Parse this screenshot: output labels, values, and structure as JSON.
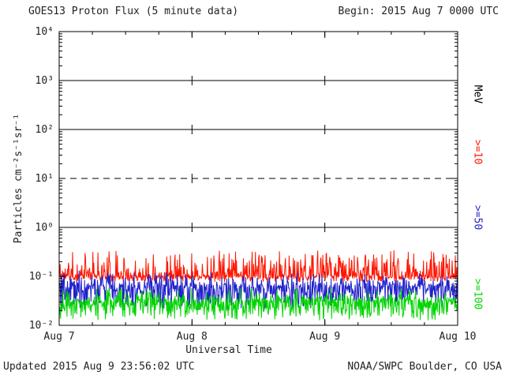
{
  "header": {
    "title": "GOES13 Proton Flux (5 minute data)",
    "begin": "Begin: 2015 Aug 7 0000 UTC"
  },
  "footer": {
    "updated": "Updated 2015 Aug  9 23:56:02 UTC",
    "credit": "NOAA/SWPC Boulder, CO USA"
  },
  "chart_data": {
    "type": "line",
    "title": "GOES13 Proton Flux (5 minute data)",
    "xlabel": "Universal Time",
    "ylabel": "Particles cm⁻²s⁻¹sr⁻¹",
    "x_ticks": [
      "Aug 7",
      "Aug 8",
      "Aug 9",
      "Aug 10"
    ],
    "x_range_days": [
      0,
      3
    ],
    "y_scale": "log",
    "y_range": [
      0.01,
      10000
    ],
    "y_tick_exponents": [
      -2,
      -1,
      0,
      1,
      2,
      3,
      4
    ],
    "y_tick_labels": [
      "10⁻²",
      "10⁻¹",
      "10⁰",
      "10¹",
      "10²",
      "10³",
      "10⁴"
    ],
    "grid": {
      "solid_h_exponents": [
        0,
        2,
        3
      ],
      "dashed_h_exponents": [
        1
      ],
      "dotted_v_days": [
        1,
        2
      ]
    },
    "legend_position": "right-outside-rotated",
    "right_labels": [
      {
        "text": "MeV",
        "color": "#000000"
      },
      {
        "text": ">=10",
        "color": "#ff1500"
      },
      {
        "text": ">=50",
        "color": "#2222cc"
      },
      {
        "text": ">=100",
        "color": "#00d400"
      }
    ],
    "series": [
      {
        "name": "Protons >=10 MeV",
        "color": "#ff1500",
        "cadence_minutes": 5,
        "points": 864,
        "approx_flux_level": 0.1,
        "log10_base": -1.0,
        "up_amp": 0.55,
        "up_pow": 4,
        "down_amp": 0.12,
        "down_pow": 2,
        "seed": 11
      },
      {
        "name": "Protons >=50 MeV",
        "color": "#2222cc",
        "cadence_minutes": 5,
        "points": 864,
        "approx_flux_level": 0.06,
        "log10_base": -1.18,
        "up_amp": 0.3,
        "up_pow": 3,
        "down_amp": 0.5,
        "down_pow": 2,
        "seed": 23
      },
      {
        "name": "Protons >=100 MeV",
        "color": "#00d400",
        "cadence_minutes": 5,
        "points": 864,
        "approx_flux_level": 0.03,
        "log10_base": -1.48,
        "up_amp": 0.25,
        "up_pow": 3,
        "down_amp": 0.42,
        "down_pow": 2,
        "seed": 37
      }
    ]
  }
}
